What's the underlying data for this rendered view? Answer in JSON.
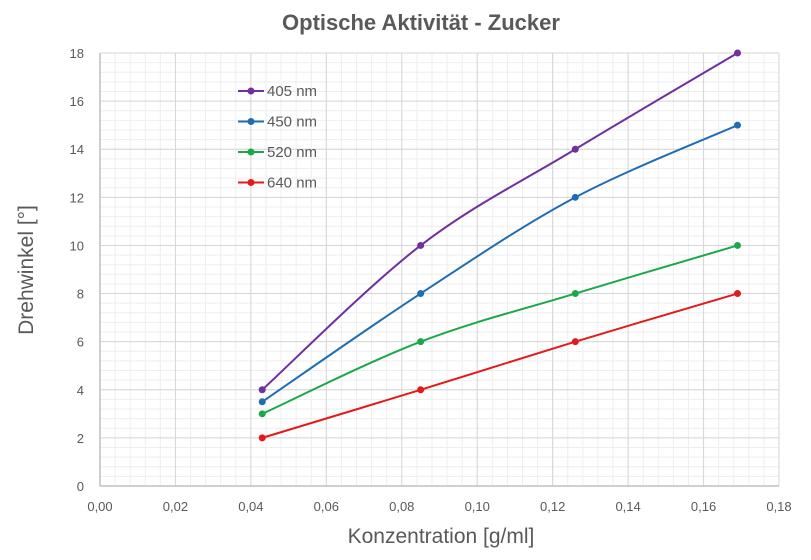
{
  "chart_data": {
    "type": "line",
    "title": "Optische Aktivität - Zucker",
    "xlabel": "Konzentration [g/ml]",
    "ylabel": "Drehwinkel [°]",
    "xlim": [
      0,
      0.18
    ],
    "ylim": [
      0,
      18
    ],
    "x_ticks": [
      "0,00",
      "0,02",
      "0,04",
      "0,06",
      "0,08",
      "0,10",
      "0,12",
      "0,14",
      "0,16",
      "0,18"
    ],
    "y_ticks": [
      "0",
      "2",
      "4",
      "6",
      "8",
      "10",
      "12",
      "14",
      "16",
      "18"
    ],
    "grid": "major and minor",
    "smoothed": true,
    "legend_position": "top-left inside",
    "x": [
      0.043,
      0.085,
      0.126,
      0.169
    ],
    "series": [
      {
        "name": "405 nm",
        "color": "#7030A0",
        "values": [
          4,
          10,
          14,
          18
        ]
      },
      {
        "name": "450 nm",
        "color": "#1F6EB4",
        "values": [
          3.5,
          8,
          12,
          15
        ]
      },
      {
        "name": "520 nm",
        "color": "#1BA84B",
        "values": [
          3,
          6,
          8,
          10
        ]
      },
      {
        "name": "640 nm",
        "color": "#E31A1C",
        "values": [
          2,
          4,
          6,
          8
        ]
      }
    ]
  }
}
